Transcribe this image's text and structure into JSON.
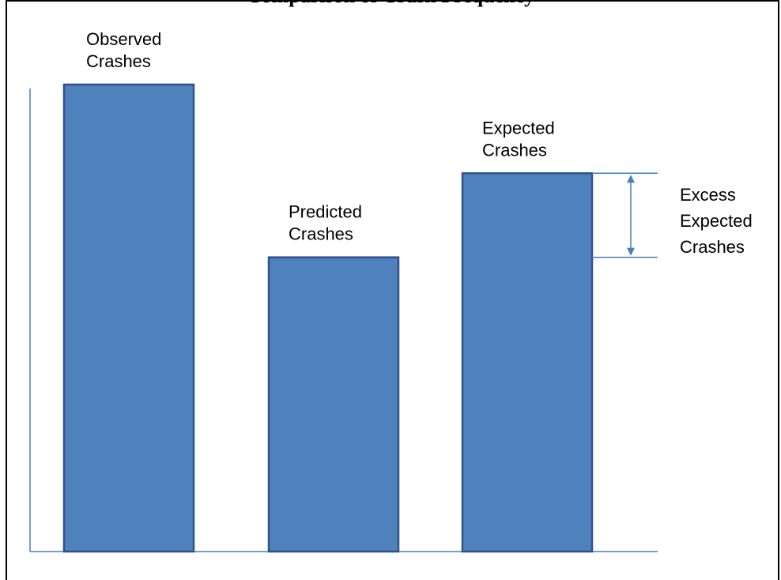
{
  "figure": {
    "title": "Comparison of Crash Frequency",
    "excess_label": [
      "Excess",
      "Expected",
      "Crashes"
    ]
  },
  "chart_data": {
    "type": "bar",
    "categories": [
      "Observed Crashes",
      "Predicted Crashes",
      "Expected Crashes"
    ],
    "category_lines": [
      [
        "Observed",
        "Crashes"
      ],
      [
        "Predicted",
        "Crashes"
      ],
      [
        "Expected",
        "Crashes"
      ]
    ],
    "values": [
      100,
      63,
      81
    ],
    "ylim": [
      0,
      100
    ],
    "grid": false,
    "legend": "none",
    "annotations": [
      {
        "type": "double-arrow",
        "from_category": "Predicted Crashes",
        "to_category": "Expected Crashes",
        "label": "Excess Expected Crashes"
      }
    ]
  },
  "colors": {
    "bar_fill": "#4f81bd",
    "bar_stroke": "#2f5289",
    "axis": "#4a7ebb",
    "frame": "#000000"
  }
}
